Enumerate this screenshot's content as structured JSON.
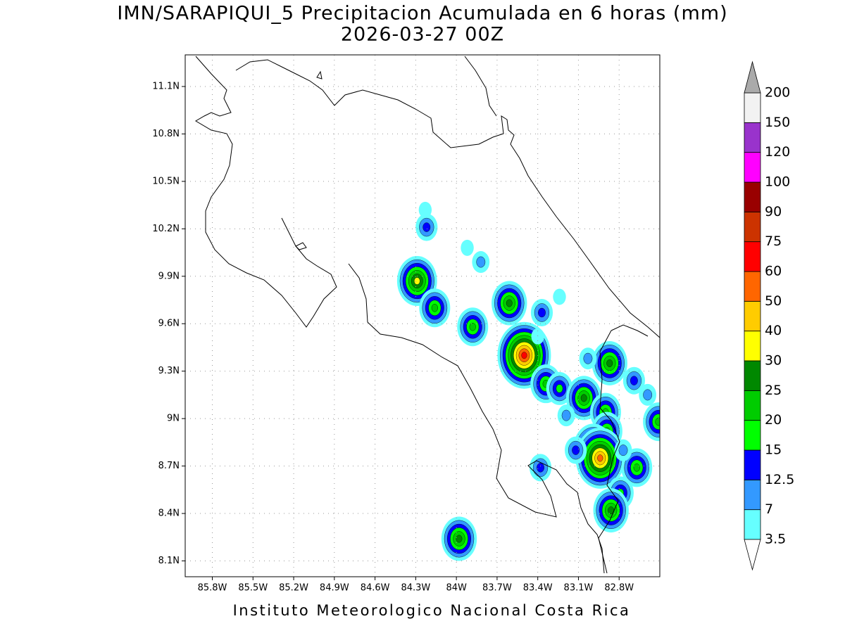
{
  "chart_data": {
    "type": "contour-map",
    "title": "IMN/SARAPIQUI_5 Precipitacion Acumulada en 6 horas (mm)",
    "subtitle": "2026-03-27 00Z",
    "credit": "Instituto Meteorologico Nacional Costa Rica",
    "xlim": [
      -86.0,
      -82.5
    ],
    "ylim": [
      8.0,
      11.3
    ],
    "xticks": [
      {
        "value": -85.8,
        "label": "85.8W"
      },
      {
        "value": -85.5,
        "label": "85.5W"
      },
      {
        "value": -85.2,
        "label": "85.2W"
      },
      {
        "value": -84.9,
        "label": "84.9W"
      },
      {
        "value": -84.6,
        "label": "84.6W"
      },
      {
        "value": -84.3,
        "label": "84.3W"
      },
      {
        "value": -84.0,
        "label": "84W"
      },
      {
        "value": -83.7,
        "label": "83.7W"
      },
      {
        "value": -83.4,
        "label": "83.4W"
      },
      {
        "value": -83.1,
        "label": "83.1W"
      },
      {
        "value": -82.8,
        "label": "82.8W"
      }
    ],
    "yticks": [
      {
        "value": 8.1,
        "label": "8.1N"
      },
      {
        "value": 8.4,
        "label": "8.4N"
      },
      {
        "value": 8.7,
        "label": "8.7N"
      },
      {
        "value": 9.0,
        "label": "9N"
      },
      {
        "value": 9.3,
        "label": "9.3N"
      },
      {
        "value": 9.6,
        "label": "9.6N"
      },
      {
        "value": 9.9,
        "label": "9.9N"
      },
      {
        "value": 10.2,
        "label": "10.2N"
      },
      {
        "value": 10.5,
        "label": "10.5N"
      },
      {
        "value": 10.8,
        "label": "10.8N"
      },
      {
        "value": 11.1,
        "label": "11.1N"
      }
    ],
    "grid": true,
    "levels": [
      3.5,
      7,
      12.5,
      15,
      20,
      25,
      30,
      40,
      50,
      60,
      75,
      90,
      100,
      120,
      150,
      200
    ],
    "colors": [
      "#66ffff",
      "#3399ff",
      "#0000ff",
      "#00ff00",
      "#00cc00",
      "#008800",
      "#ffff00",
      "#ffcc00",
      "#ff6600",
      "#ff0000",
      "#cc3300",
      "#990000",
      "#ff00ff",
      "#9933cc",
      "#f2f2f2"
    ],
    "under_color": "#ffffff",
    "over_color": "#aaaaaa",
    "cells": [
      {
        "lon": -84.29,
        "lat": 9.87,
        "value": 30
      },
      {
        "lon": -84.22,
        "lat": 10.21,
        "value": 12.5
      },
      {
        "lon": -84.23,
        "lat": 10.32,
        "value": 5
      },
      {
        "lon": -84.16,
        "lat": 9.7,
        "value": 20
      },
      {
        "lon": -83.88,
        "lat": 9.58,
        "value": 20
      },
      {
        "lon": -83.61,
        "lat": 9.73,
        "value": 25
      },
      {
        "lon": -83.5,
        "lat": 9.4,
        "value": 60
      },
      {
        "lon": -83.37,
        "lat": 9.67,
        "value": 12.5
      },
      {
        "lon": -83.34,
        "lat": 9.22,
        "value": 20
      },
      {
        "lon": -83.24,
        "lat": 9.19,
        "value": 15
      },
      {
        "lon": -83.06,
        "lat": 9.13,
        "value": 25
      },
      {
        "lon": -82.87,
        "lat": 9.35,
        "value": 25
      },
      {
        "lon": -82.69,
        "lat": 9.24,
        "value": 12.5
      },
      {
        "lon": -82.59,
        "lat": 9.15,
        "value": 7
      },
      {
        "lon": -82.51,
        "lat": 8.98,
        "value": 20
      },
      {
        "lon": -82.9,
        "lat": 9.04,
        "value": 20
      },
      {
        "lon": -82.89,
        "lat": 8.92,
        "value": 20
      },
      {
        "lon": -82.99,
        "lat": 8.81,
        "value": 30
      },
      {
        "lon": -82.94,
        "lat": 8.75,
        "value": 50
      },
      {
        "lon": -82.67,
        "lat": 8.69,
        "value": 20
      },
      {
        "lon": -82.77,
        "lat": 8.8,
        "value": 7
      },
      {
        "lon": -82.79,
        "lat": 8.53,
        "value": 15
      },
      {
        "lon": -82.86,
        "lat": 8.42,
        "value": 25
      },
      {
        "lon": -83.12,
        "lat": 8.8,
        "value": 12.5
      },
      {
        "lon": -83.38,
        "lat": 8.69,
        "value": 12.5
      },
      {
        "lon": -83.98,
        "lat": 8.24,
        "value": 25
      },
      {
        "lon": -83.82,
        "lat": 9.99,
        "value": 7
      },
      {
        "lon": -83.92,
        "lat": 10.08,
        "value": 5
      },
      {
        "lon": -83.24,
        "lat": 9.77,
        "value": 5
      },
      {
        "lon": -83.4,
        "lat": 9.52,
        "value": 5
      },
      {
        "lon": -83.03,
        "lat": 9.38,
        "value": 7
      },
      {
        "lon": -83.19,
        "lat": 9.02,
        "value": 7
      }
    ]
  }
}
